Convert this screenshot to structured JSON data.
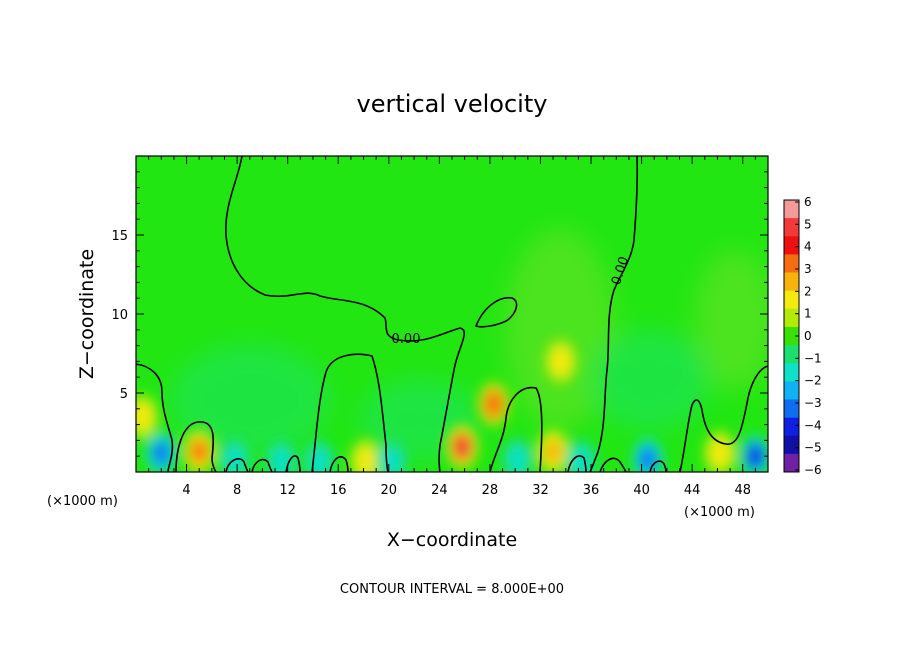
{
  "chart_data": {
    "type": "heatmap",
    "title": "vertical velocity",
    "xlabel": "X−coordinate",
    "ylabel": "Z−coordinate",
    "x_unit": "(×1000 m)",
    "z_unit": "(×1000 m)",
    "xlim": [
      0,
      50
    ],
    "ylim": [
      0,
      20
    ],
    "x_ticks": [
      "4",
      "8",
      "12",
      "16",
      "20",
      "24",
      "28",
      "32",
      "36",
      "40",
      "44",
      "48"
    ],
    "y_ticks": [
      "5",
      "10",
      "15"
    ],
    "contour_label": "0.00",
    "contour_interval_text": "CONTOUR INTERVAL = 8.000E+00",
    "colorbar": {
      "labels": [
        "6",
        "5",
        "4",
        "3",
        "2",
        "1",
        "0",
        "−1",
        "−2",
        "−3",
        "−4",
        "−5",
        "−6"
      ],
      "colors": [
        "#f49a9a",
        "#f23a3a",
        "#ee1010",
        "#f56d10",
        "#f7b20c",
        "#f4ea10",
        "#b4ea08",
        "#38e008",
        "#1be070",
        "#10e0c8",
        "#10b2f0",
        "#106df0",
        "#1020e0",
        "#1010a6",
        "#7020a0"
      ]
    },
    "cells": [
      {
        "x": 0.5,
        "z": 3.5,
        "w": 1.5
      },
      {
        "x": 2.0,
        "z": 1.2,
        "w": -3.5
      },
      {
        "x": 5.0,
        "z": 1.3,
        "w": 3.5
      },
      {
        "x": 7.8,
        "z": 0.8,
        "w": -2.0
      },
      {
        "x": 11.5,
        "z": 0.7,
        "w": -1.5
      },
      {
        "x": 14.5,
        "z": 0.7,
        "w": -1.5
      },
      {
        "x": 18.2,
        "z": 0.7,
        "w": 1.5
      },
      {
        "x": 20.2,
        "z": 0.7,
        "w": -1.5
      },
      {
        "x": 25.8,
        "z": 1.6,
        "w": 5.0
      },
      {
        "x": 28.3,
        "z": 4.3,
        "w": 3.2
      },
      {
        "x": 30.2,
        "z": 0.8,
        "w": -2.0
      },
      {
        "x": 33.0,
        "z": 1.3,
        "w": 3.0
      },
      {
        "x": 33.6,
        "z": 7.0,
        "w": 1.5
      },
      {
        "x": 35.2,
        "z": 0.7,
        "w": -1.5
      },
      {
        "x": 40.5,
        "z": 0.8,
        "w": -3.5
      },
      {
        "x": 46.2,
        "z": 1.2,
        "w": 2.0
      },
      {
        "x": 49.0,
        "z": 1.0,
        "w": -4.0
      }
    ]
  }
}
